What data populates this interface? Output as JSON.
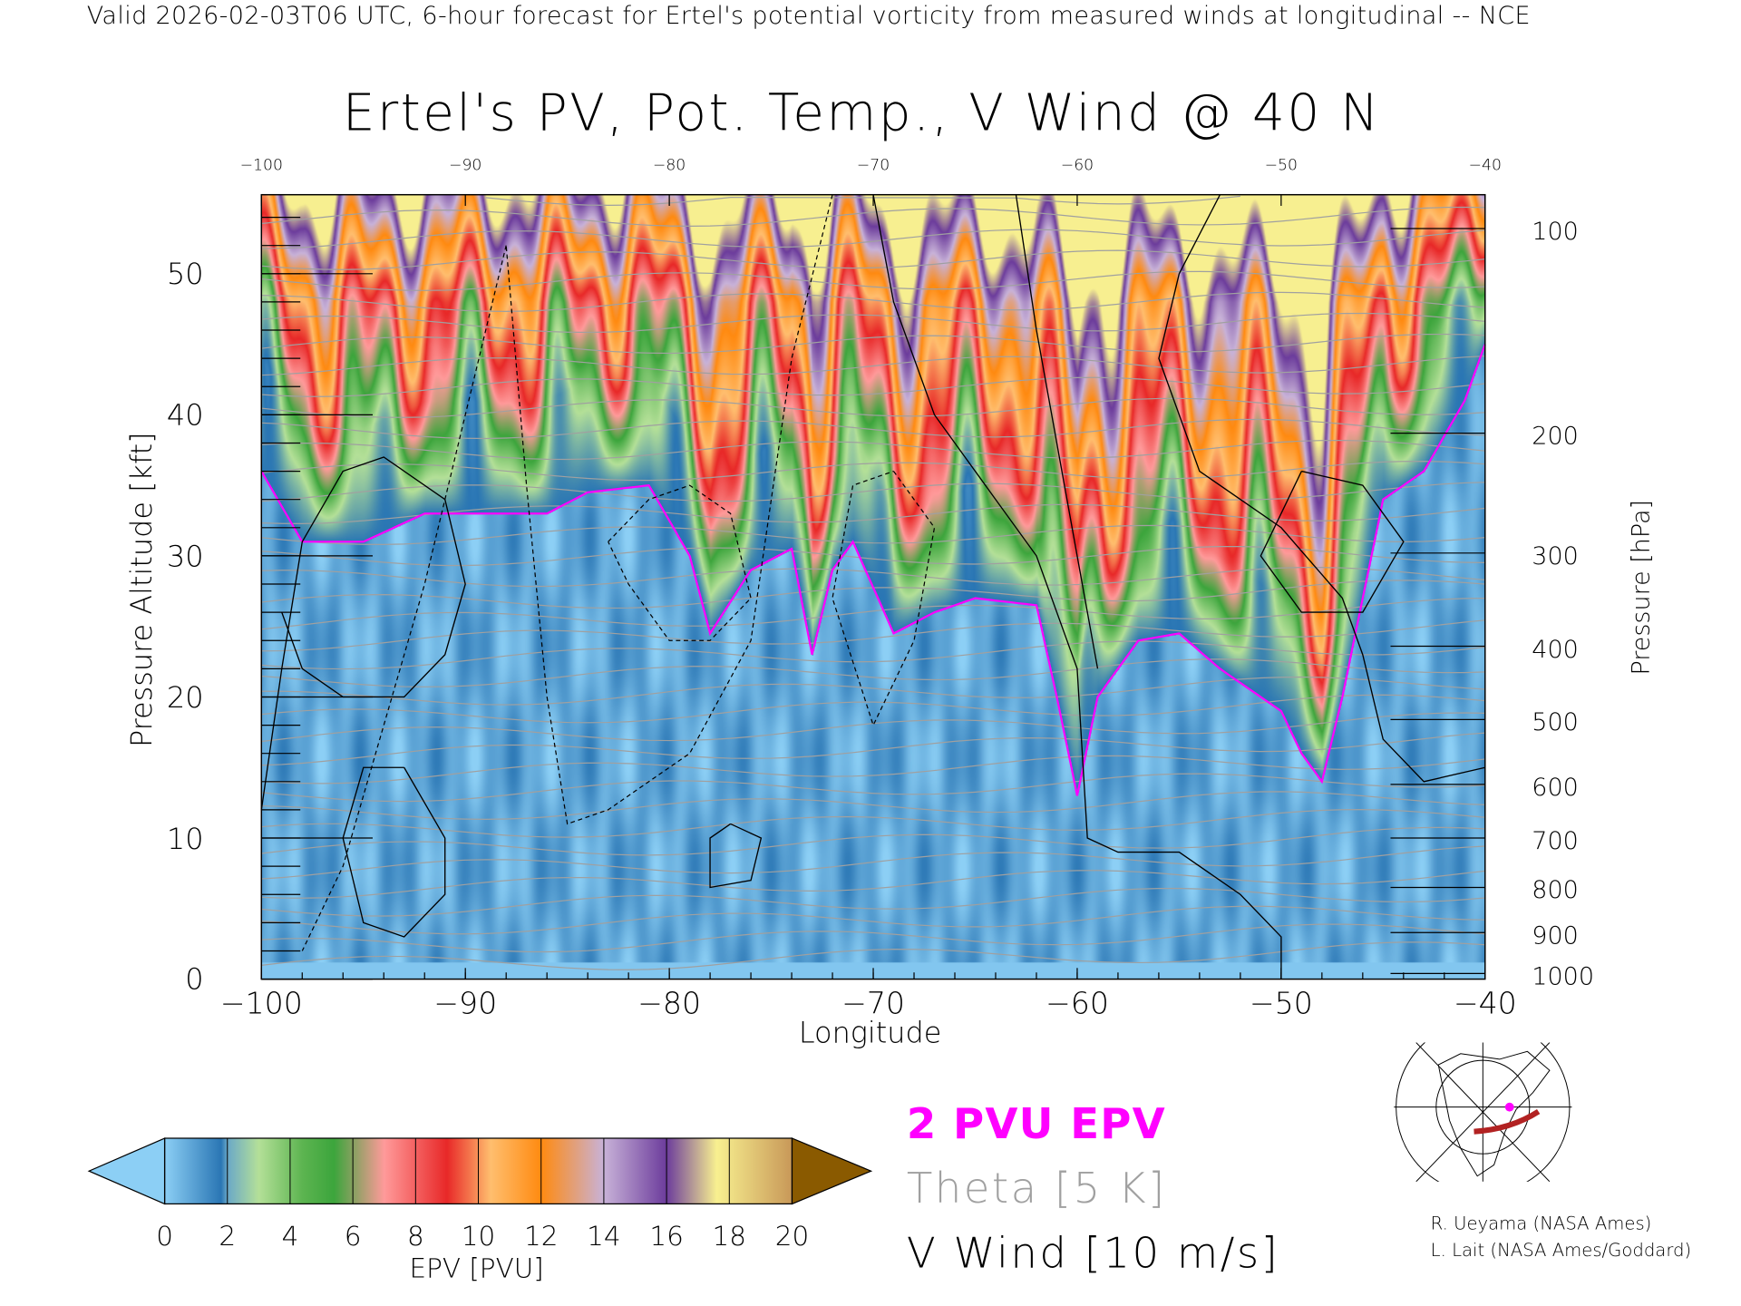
{
  "header": {
    "subtitle": "Valid 2026-02-03T06 UTC, 6-hour forecast for Ertel's potential vorticity from measured winds at longitudinal -- NCE",
    "title": "Ertel's PV, Pot. Temp., V Wind @ 40 N"
  },
  "chart_data": {
    "type": "heatmap",
    "title": "Ertel's PV, Pot. Temp., V Wind @ 40 N",
    "xlabel": "Longitude",
    "ylabel": "Pressure Altitude [kft]",
    "y2label": "Pressure [hPa]",
    "xlim": [
      -100,
      -40
    ],
    "ylim": [
      0,
      55.6
    ],
    "x_ticks": [
      "-100",
      "-90",
      "-80",
      "-70",
      "-60",
      "-50",
      "-40"
    ],
    "x_tick_values": [
      -100,
      -90,
      -80,
      -70,
      -60,
      -50,
      -40
    ],
    "y_ticks": [
      "0",
      "10",
      "20",
      "30",
      "40",
      "50"
    ],
    "y_tick_values": [
      0,
      10,
      20,
      30,
      40,
      50
    ],
    "pressure_ticks": [
      {
        "label": "100",
        "kft": 53.2
      },
      {
        "label": "200",
        "kft": 38.7
      },
      {
        "label": "300",
        "kft": 30.2
      },
      {
        "label": "400",
        "kft": 23.6
      },
      {
        "label": "500",
        "kft": 18.4
      },
      {
        "label": "600",
        "kft": 13.8
      },
      {
        "label": "700",
        "kft": 10.0
      },
      {
        "label": "800",
        "kft": 6.5
      },
      {
        "label": "900",
        "kft": 3.3
      },
      {
        "label": "1000",
        "kft": 0.4
      }
    ],
    "tropopause_2pvu_kft": {
      "lon": [
        -100,
        -98,
        -95,
        -92,
        -90,
        -86,
        -84,
        -81,
        -79,
        -78,
        -76,
        -74,
        -73,
        -72,
        -71,
        -69,
        -67,
        -65,
        -62,
        -61,
        -60,
        -59,
        -57,
        -55,
        -53,
        -51,
        -50,
        -49,
        -48,
        -47,
        -45,
        -43,
        -41,
        -40
      ],
      "alt": [
        36,
        31,
        31,
        33,
        33,
        33,
        34.5,
        35,
        30,
        24.5,
        29,
        30.5,
        23,
        29,
        31,
        24.5,
        26,
        27,
        26.5,
        20,
        13,
        20,
        24,
        24.5,
        22,
        20,
        19,
        16,
        14,
        20,
        34,
        36,
        41,
        45
      ]
    },
    "colorbar": {
      "label": "EPV [PVU]",
      "ticks": [
        "0",
        "2",
        "4",
        "6",
        "8",
        "10",
        "12",
        "14",
        "16",
        "18",
        "20"
      ],
      "range": [
        0,
        20
      ],
      "colors": [
        "#8ccff5",
        "#2a76b4",
        "#b4e098",
        "#3ca53c",
        "#ff9a9a",
        "#e82828",
        "#ffbe6e",
        "#ff8a10",
        "#c8b2d8",
        "#6c3c9c",
        "#f8f090",
        "#8a5a00"
      ]
    }
  },
  "legend": {
    "pvu_line": "2 PVU EPV",
    "theta": "Theta [5 K]",
    "vwind": "V Wind [10 m/s]",
    "pvu_color": "#ff00ff",
    "theta_color": "#a0a0a0"
  },
  "credits": {
    "line1": "R. Ueyama (NASA Ames)",
    "line2": "L. Lait (NASA Ames/Goddard)"
  }
}
